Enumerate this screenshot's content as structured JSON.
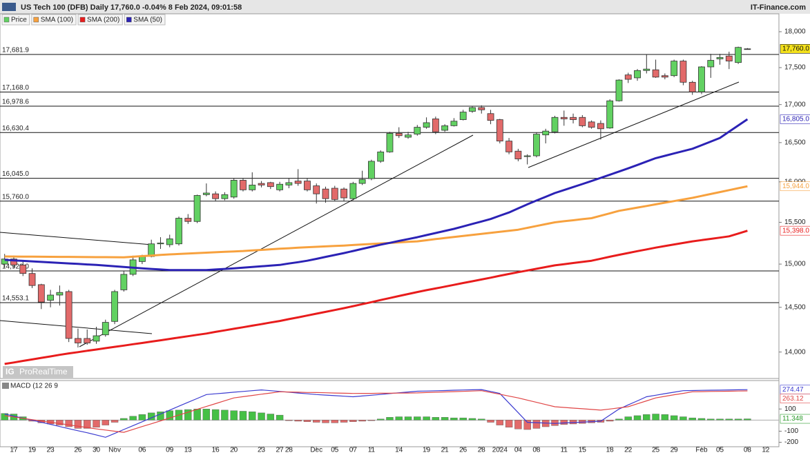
{
  "header": {
    "title": "US Tech 100 (DFB) Daily 17,760.0 -0.04% 8 Feb 2024, 09:01:58",
    "brand": "IT-Finance.com",
    "watermark": "ProRealTime"
  },
  "chart_data": [
    {
      "type": "candlestick",
      "log_scale": true,
      "ylim": [
        13720,
        18235
      ],
      "yticks": [
        {
          "value": 18000,
          "label": "18,000"
        },
        {
          "value": 17500,
          "label": "17,500"
        },
        {
          "value": 17000,
          "label": "17,000"
        },
        {
          "value": 16500,
          "label": "16,500"
        },
        {
          "value": 16000,
          "label": "16,000"
        },
        {
          "value": 15500,
          "label": "15,500"
        },
        {
          "value": 15000,
          "label": "15,000"
        },
        {
          "value": 14500,
          "label": "14,500"
        },
        {
          "value": 14000,
          "label": "14,000"
        }
      ],
      "categories": [
        null,
        "17",
        null,
        "19",
        null,
        "23",
        null,
        null,
        "26",
        null,
        "30",
        null,
        "Nov",
        null,
        null,
        "06",
        null,
        null,
        "09",
        null,
        "13",
        null,
        null,
        "16",
        null,
        "20",
        null,
        null,
        "23",
        null,
        "27",
        "28",
        null,
        null,
        "Dec",
        null,
        "05",
        null,
        "07",
        null,
        "11",
        null,
        null,
        "14",
        null,
        null,
        "19",
        null,
        "21",
        null,
        "26",
        null,
        "28",
        null,
        "2024",
        null,
        "04",
        null,
        "08",
        null,
        null,
        "11",
        null,
        "15",
        null,
        null,
        "18",
        null,
        "22",
        null,
        null,
        "25",
        null,
        "29",
        null,
        null,
        "Feb",
        null,
        "05",
        null,
        null,
        "08",
        null,
        "12"
      ],
      "levels": [
        {
          "value": 17681.9,
          "label": "17,681.9"
        },
        {
          "value": 17168.0,
          "label": "17,168.0"
        },
        {
          "value": 16978.6,
          "label": "16,978.6"
        },
        {
          "value": 16630.4,
          "label": "16,630.4"
        },
        {
          "value": 16045.0,
          "label": "16,045.0"
        },
        {
          "value": 15760.0,
          "label": "15,760.0"
        },
        {
          "value": 14920.0,
          "label": "14,920.0"
        },
        {
          "value": 14553.1,
          "label": "14,553.1"
        }
      ],
      "series": [
        {
          "name": "Price",
          "color": "#62d162",
          "down_color": "#e26a6a",
          "tag": {
            "value": 17760.0,
            "label": "17,760.0"
          },
          "open": [
            15000,
            15060,
            14990,
            14890,
            14760,
            14580,
            14640,
            14680,
            14150,
            14150,
            14120,
            14190,
            14340,
            14700,
            14880,
            15030,
            15090,
            15240,
            15230,
            15240,
            15550,
            15510,
            15840,
            15850,
            15790,
            15810,
            16020,
            15900,
            15980,
            15990,
            15900,
            15960,
            16010,
            16010,
            15950,
            15910,
            15920,
            15910,
            15790,
            15980,
            16040,
            16260,
            16380,
            16620,
            16570,
            16610,
            16700,
            16810,
            16660,
            16720,
            16800,
            16910,
            16960,
            16880,
            16800,
            16520,
            16390,
            16320,
            16330,
            16600,
            16640,
            16830,
            16830,
            16830,
            16770,
            16750,
            16690,
            17050,
            17400,
            17360,
            17460,
            17470,
            17390,
            17390,
            17590,
            17300,
            17170,
            17510,
            17620,
            17660,
            17570,
            17760,
            null,
            null
          ],
          "high": [
            15120,
            15100,
            15030,
            14950,
            14770,
            14700,
            14750,
            14700,
            14260,
            14250,
            14280,
            14360,
            14700,
            14920,
            15100,
            15110,
            15290,
            15320,
            15350,
            15570,
            15600,
            15840,
            15980,
            15880,
            15870,
            16040,
            16040,
            16120,
            16010,
            16000,
            16000,
            16040,
            16160,
            16040,
            15980,
            15940,
            15950,
            15930,
            16000,
            16140,
            16280,
            16400,
            16640,
            16700,
            16640,
            16730,
            16830,
            16840,
            16740,
            16820,
            16930,
            16980,
            16990,
            16930,
            16810,
            16560,
            16420,
            16350,
            16630,
            16680,
            16850,
            16920,
            16880,
            16860,
            16790,
            16790,
            17070,
            17340,
            17430,
            17480,
            17680,
            17610,
            17420,
            17610,
            17610,
            17320,
            17520,
            17690,
            17690,
            17720,
            17790,
            17770,
            null,
            null
          ],
          "low": [
            14960,
            14950,
            14860,
            14720,
            14480,
            14500,
            14520,
            14110,
            14050,
            14080,
            14090,
            14170,
            14310,
            14680,
            14860,
            15000,
            15080,
            15180,
            15200,
            15220,
            15480,
            15490,
            15820,
            15760,
            15770,
            15790,
            15880,
            15880,
            15930,
            15910,
            15880,
            15920,
            15950,
            15880,
            15730,
            15740,
            15760,
            15760,
            15770,
            15960,
            16020,
            16240,
            16370,
            16560,
            16550,
            16590,
            16680,
            16610,
            16640,
            16710,
            16790,
            16890,
            16880,
            16740,
            16490,
            16350,
            16260,
            16220,
            16310,
            16490,
            16620,
            16720,
            16750,
            16700,
            16680,
            16540,
            16680,
            17040,
            17290,
            17320,
            17420,
            17360,
            17340,
            17370,
            17260,
            17130,
            17140,
            17360,
            17540,
            17480,
            17550,
            17750,
            null,
            null
          ],
          "close": [
            15060,
            14990,
            14890,
            14750,
            14560,
            14640,
            14670,
            14150,
            14100,
            14100,
            14180,
            14330,
            14680,
            14880,
            15050,
            15090,
            15240,
            15250,
            15300,
            15550,
            15510,
            15830,
            15860,
            15790,
            15840,
            16020,
            15900,
            15960,
            15960,
            15940,
            15970,
            15990,
            15980,
            15900,
            15850,
            15790,
            15780,
            15800,
            15980,
            16030,
            16260,
            16380,
            16620,
            16590,
            16600,
            16700,
            16760,
            16640,
            16720,
            16780,
            16900,
            16960,
            16930,
            16790,
            16520,
            16380,
            16290,
            16330,
            16610,
            16650,
            16830,
            16810,
            16800,
            16720,
            16700,
            16680,
            17050,
            17330,
            17340,
            17460,
            17480,
            17370,
            17370,
            17590,
            17300,
            17170,
            17510,
            17600,
            17640,
            17590,
            17780,
            17760,
            null,
            null
          ]
        },
        {
          "name": "SMA (100)",
          "color": "#f7a13e",
          "tag": {
            "value": 15944.0,
            "label": "15,944.0"
          },
          "values": [
            15090,
            15089,
            15088,
            15088,
            15087,
            15086,
            15085,
            15085,
            15084,
            15083,
            15082,
            15082,
            15081,
            15080,
            15087,
            15094,
            15101,
            15108,
            15115,
            15120,
            15125,
            15130,
            15135,
            15140,
            15145,
            15150,
            15155,
            15162,
            15168,
            15175,
            15182,
            15188,
            15195,
            15200,
            15205,
            15210,
            15215,
            15220,
            15226,
            15233,
            15239,
            15245,
            15251,
            15258,
            15264,
            15270,
            15283,
            15297,
            15310,
            15323,
            15335,
            15348,
            15360,
            15373,
            15385,
            15398,
            15410,
            15433,
            15455,
            15478,
            15500,
            15513,
            15525,
            15538,
            15550,
            15580,
            15610,
            15640,
            15660,
            15680,
            15700,
            15720,
            15740,
            15760,
            15780,
            15800,
            15824,
            15848,
            15872,
            15896,
            15920,
            15944,
            null,
            null
          ]
        },
        {
          "name": "SMA (200)",
          "color": "#e81c1c",
          "tag": {
            "value": 15398.0,
            "label": "15,398.0"
          },
          "values": [
            13870,
            13886,
            13903,
            13919,
            13936,
            13952,
            13969,
            13985,
            13999,
            14014,
            14028,
            14043,
            14057,
            14071,
            14086,
            14100,
            14115,
            14130,
            14145,
            14160,
            14175,
            14190,
            14205,
            14223,
            14240,
            14258,
            14275,
            14293,
            14310,
            14328,
            14345,
            14366,
            14386,
            14407,
            14428,
            14448,
            14469,
            14490,
            14513,
            14536,
            14559,
            14583,
            14606,
            14629,
            14652,
            14675,
            14696,
            14716,
            14737,
            14758,
            14779,
            14799,
            14820,
            14841,
            14863,
            14884,
            14905,
            14925,
            14945,
            14965,
            14985,
            14999,
            15013,
            15026,
            15040,
            15063,
            15087,
            15110,
            15131,
            15153,
            15174,
            15195,
            15214,
            15233,
            15251,
            15270,
            15285,
            15300,
            15315,
            15330,
            15364,
            15398,
            null,
            null
          ]
        },
        {
          "name": "SMA (50)",
          "color": "#2b22b5",
          "tag": {
            "value": 16805.0,
            "label": "16,805.0"
          },
          "values": [
            15050,
            15044,
            15038,
            15032,
            15026,
            15020,
            15014,
            15008,
            15002,
            14996,
            14990,
            14982,
            14974,
            14966,
            14958,
            14950,
            14943,
            14937,
            14930,
            14930,
            14930,
            14930,
            14930,
            14937,
            14943,
            14950,
            14958,
            14966,
            14974,
            14982,
            14990,
            15007,
            15023,
            15040,
            15062,
            15085,
            15107,
            15130,
            15155,
            15180,
            15205,
            15230,
            15252,
            15275,
            15297,
            15320,
            15345,
            15370,
            15395,
            15420,
            15450,
            15480,
            15510,
            15540,
            15580,
            15620,
            15670,
            15720,
            15767,
            15813,
            15860,
            15897,
            15935,
            15972,
            16010,
            16050,
            16090,
            16130,
            16170,
            16213,
            16257,
            16300,
            16330,
            16360,
            16390,
            16420,
            16467,
            16513,
            16560,
            16642,
            16723,
            16805,
            null,
            null
          ]
        }
      ]
    },
    {
      "type": "macd",
      "title": "MACD (12 26 9",
      "ylim": [
        -240,
        350
      ],
      "yticks": [
        100,
        -100,
        -200
      ],
      "histogram": {
        "color": "#46c046",
        "down_color": "#e26a6a",
        "tag": 11.348,
        "values": [
          60,
          55,
          30,
          -10,
          -25,
          -35,
          -45,
          -60,
          -75,
          -75,
          -65,
          -45,
          -20,
          15,
          35,
          50,
          65,
          75,
          85,
          90,
          95,
          100,
          100,
          95,
          90,
          85,
          80,
          75,
          65,
          55,
          45,
          -5,
          -10,
          -15,
          -20,
          -25,
          -25,
          -20,
          -15,
          -10,
          -5,
          10,
          25,
          30,
          30,
          30,
          30,
          25,
          25,
          20,
          20,
          15,
          10,
          -20,
          -45,
          -65,
          -80,
          -85,
          -75,
          -60,
          -50,
          -40,
          -35,
          -30,
          -25,
          -20,
          -10,
          10,
          30,
          40,
          50,
          55,
          50,
          40,
          30,
          20,
          15,
          10,
          10,
          10,
          10,
          11.348
        ]
      },
      "series": [
        {
          "color": "#3a3ad0",
          "tag": 274.47,
          "values": [
            55,
            36,
            17,
            -1,
            -20,
            -39,
            -58,
            -77,
            -96,
            -114,
            -134,
            -155,
            -120,
            -85,
            -50,
            -15,
            20,
            55,
            90,
            125,
            160,
            195,
            230,
            237,
            244,
            251,
            258,
            265,
            272,
            265,
            258,
            251,
            244,
            237,
            230,
            225,
            220,
            215,
            210,
            217,
            224,
            231,
            239,
            246,
            253,
            260,
            262,
            264,
            266,
            269,
            271,
            273,
            275,
            258,
            240,
            153,
            67,
            -20,
            -23,
            -27,
            -30,
            -26,
            -22,
            -18,
            -14,
            -10,
            45,
            100,
            137,
            173,
            210,
            224,
            238,
            251,
            265,
            266,
            268,
            269,
            270,
            272,
            273,
            274.47
          ]
        },
        {
          "color": "#e04545",
          "tag": 263.12,
          "values": [
            40,
            28,
            16,
            4,
            -8,
            -20,
            -31,
            -43,
            -55,
            -67,
            -79,
            -90,
            -100,
            -110,
            -84,
            -58,
            -33,
            -7,
            19,
            45,
            71,
            97,
            123,
            148,
            174,
            200,
            211,
            222,
            233,
            244,
            255,
            253,
            251,
            249,
            248,
            246,
            244,
            242,
            240,
            241,
            241,
            242,
            242,
            243,
            244,
            245,
            248,
            251,
            254,
            256,
            259,
            262,
            265,
            249,
            233,
            216,
            200,
            180,
            160,
            140,
            120,
            114,
            108,
            102,
            96,
            90,
            100,
            110,
            120,
            147,
            173,
            200,
            214,
            228,
            241,
            255,
            256,
            258,
            259,
            260,
            262,
            263.12
          ]
        }
      ]
    }
  ]
}
